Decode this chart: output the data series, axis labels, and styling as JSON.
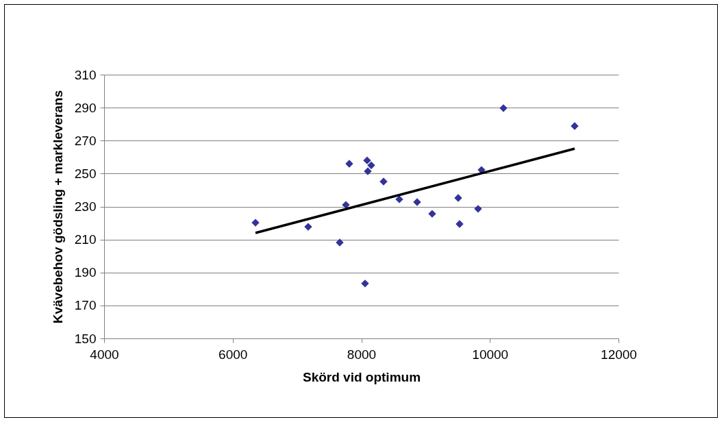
{
  "chart_data": {
    "type": "scatter",
    "xlabel": "Skörd vid optimum",
    "ylabel": "Kvävebehov gödsling + markleverans",
    "xlim": [
      4000,
      12000
    ],
    "xticks": [
      4000,
      6000,
      8000,
      10000,
      12000
    ],
    "ylim": [
      150,
      310
    ],
    "yticks": [
      150,
      170,
      190,
      210,
      230,
      250,
      270,
      290,
      310
    ],
    "grid": "y",
    "series": [
      {
        "marker": "diamond",
        "color": "#333399",
        "x": [
          6354,
          7174,
          7664,
          7760,
          7813,
          8058,
          8090,
          8154,
          8101,
          8346,
          8591,
          8868,
          9102,
          9507,
          9528,
          9816,
          9869,
          10210,
          11318
        ],
        "values": [
          220.2,
          217.7,
          208.2,
          231,
          256,
          183.3,
          258,
          255,
          251.4,
          245.2,
          234.4,
          232.7,
          225.6,
          235.2,
          219.4,
          228.6,
          252.2,
          289.7,
          278.8
        ]
      },
      {
        "type": "line",
        "marker": "none",
        "color": "#000000",
        "x": [
          6354,
          11318
        ],
        "values": [
          214.0,
          265.1
        ]
      }
    ]
  }
}
